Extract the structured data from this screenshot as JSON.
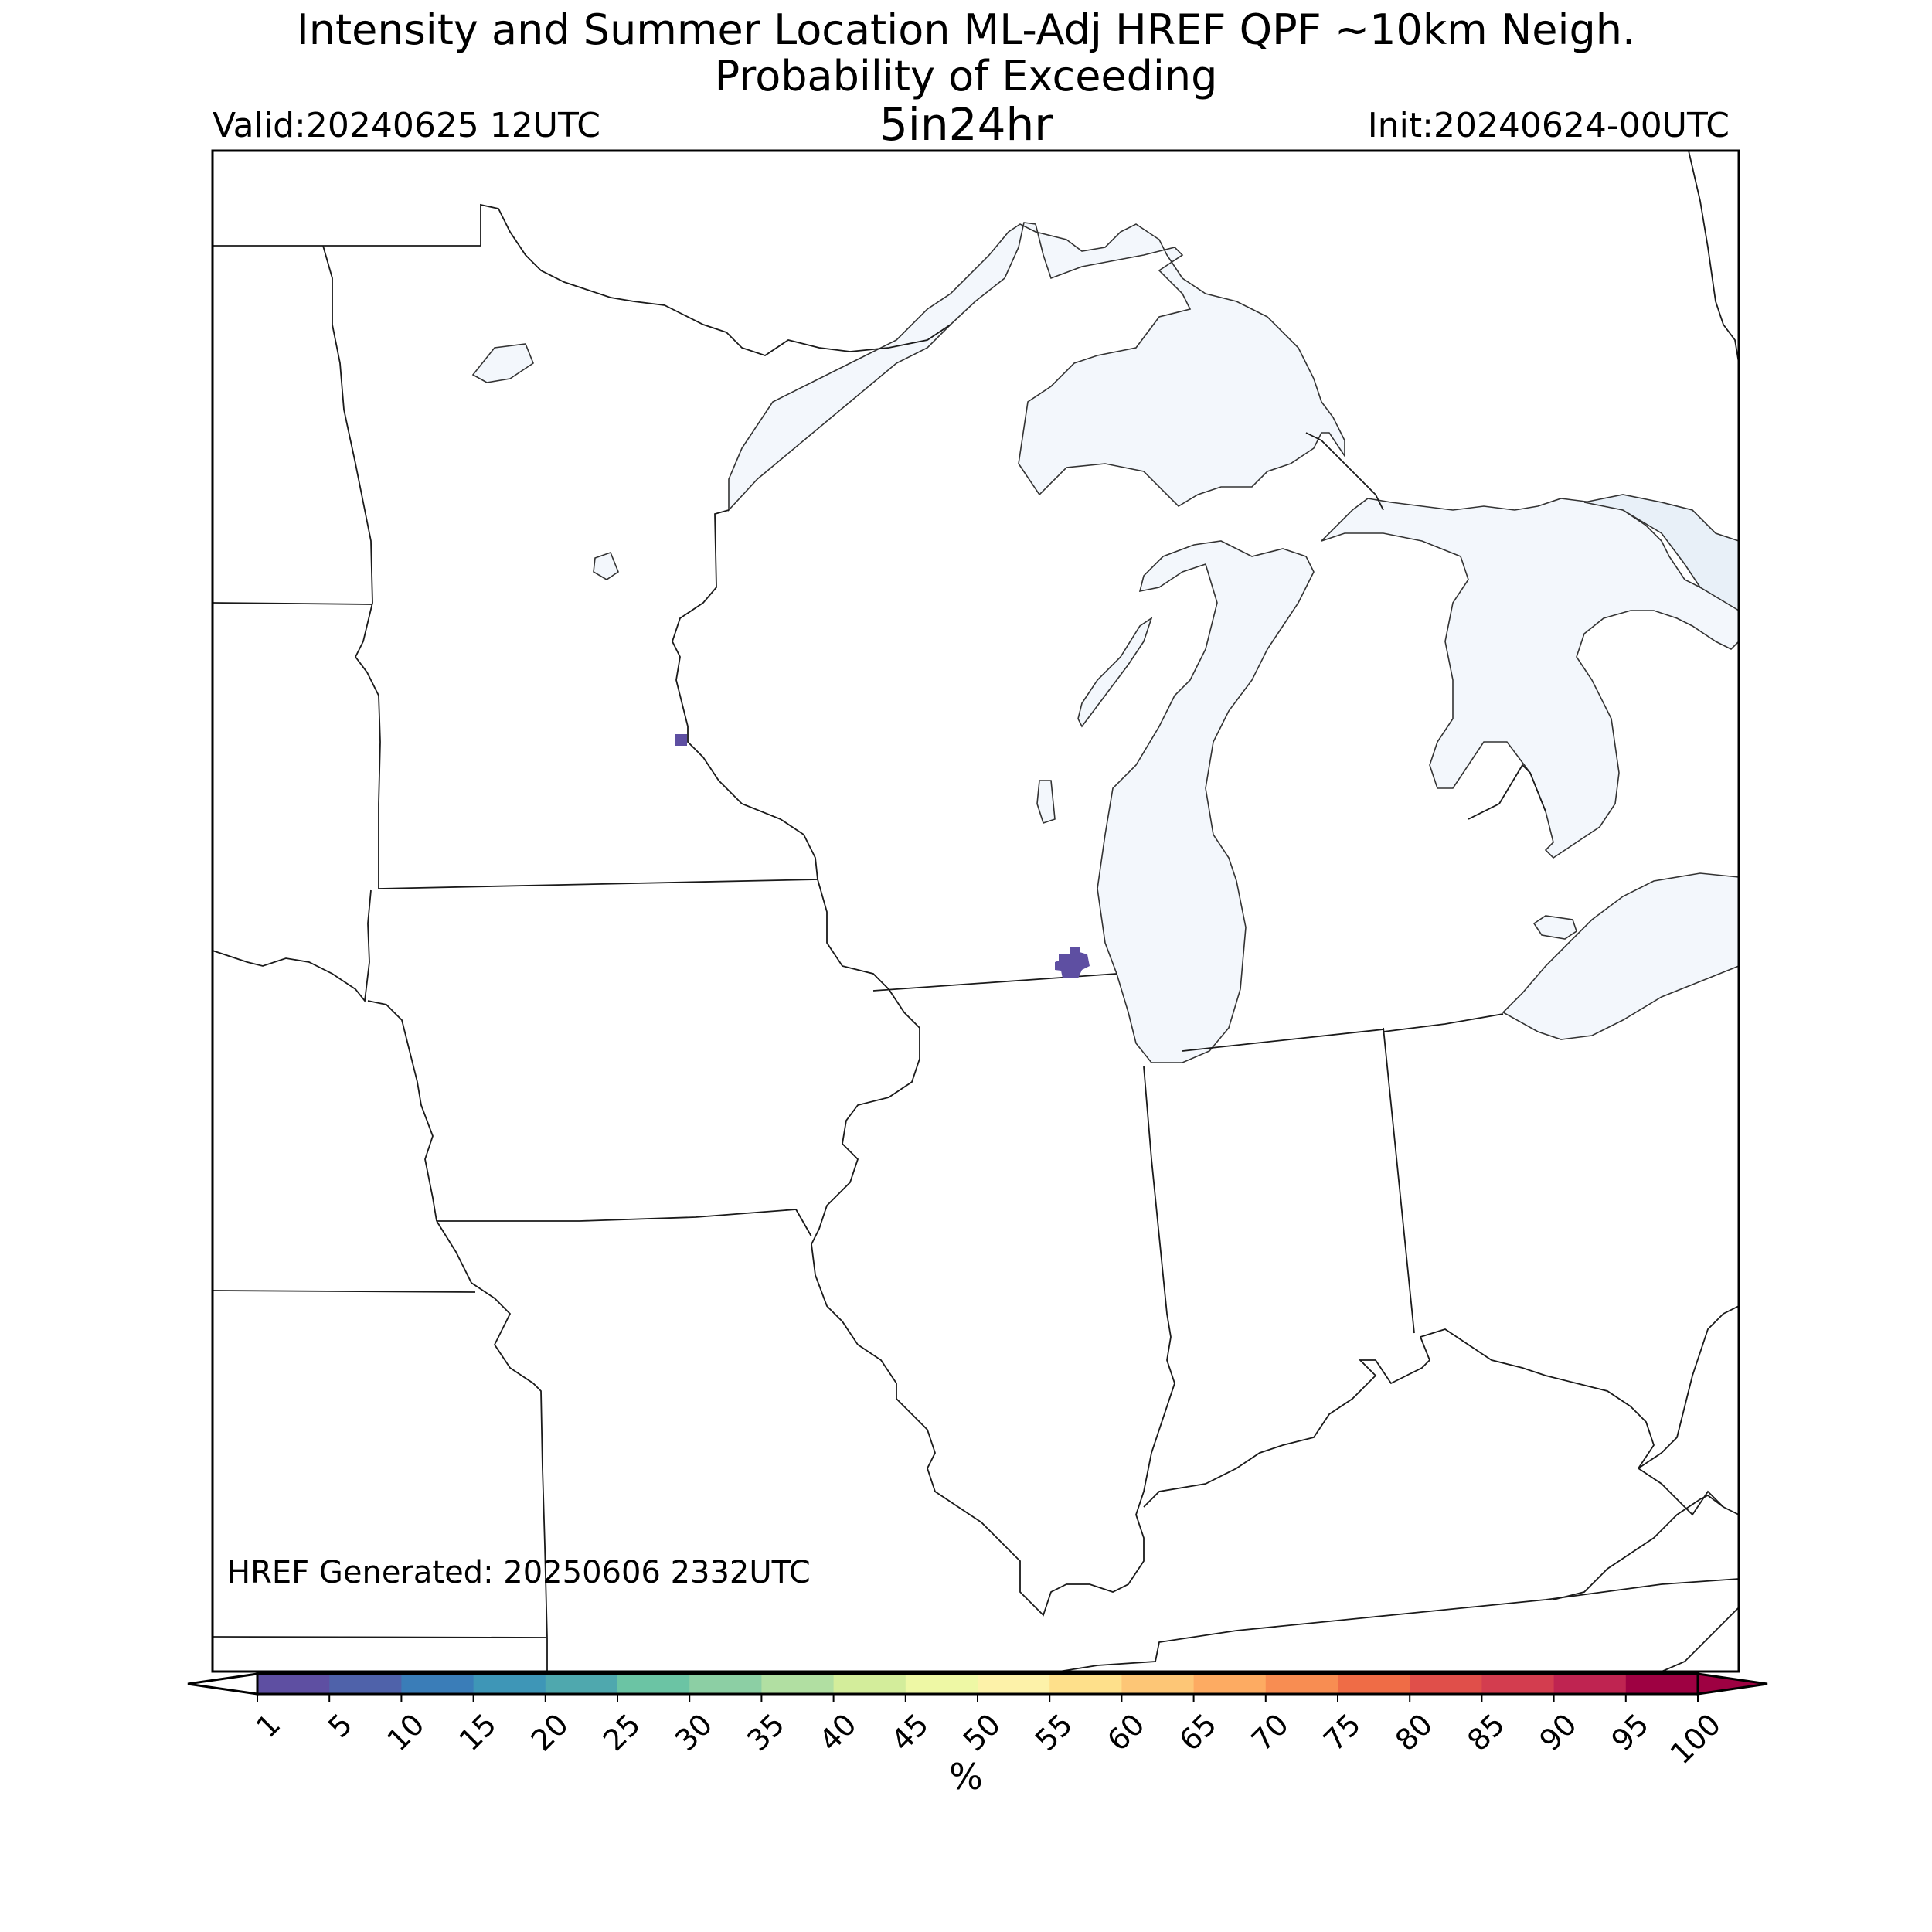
{
  "title": {
    "line1": "Intensity and Summer Location ML-Adj HREF QPF ~10km Neigh.",
    "line2": "Probability of Exceeding",
    "line3": "5in24hr"
  },
  "valid_label": "Valid:20240625 12UTC",
  "init_label": "Init:20240624-00UTC",
  "generated_label": "HREF Generated: 20250606 2332UTC",
  "colorbar": {
    "unit": "%",
    "ticks": [
      "1",
      "5",
      "10",
      "15",
      "20",
      "25",
      "30",
      "35",
      "40",
      "45",
      "50",
      "55",
      "60",
      "65",
      "70",
      "75",
      "80",
      "85",
      "90",
      "95",
      "100"
    ],
    "colors": [
      "#5e4fa2",
      "#4f62aa",
      "#3a7db8",
      "#3e96b7",
      "#4fa8ae",
      "#6bc4a4",
      "#8ccfa4",
      "#b1dfa2",
      "#d3ed9b",
      "#eef8a5",
      "#fdf2a9",
      "#fee08b",
      "#fdc676",
      "#fdab62",
      "#f88d52",
      "#ef6c46",
      "#e04f4a",
      "#d33d4f",
      "#bf2451",
      "#9e0142"
    ],
    "under_color": "#ffffff",
    "over_color": "#9e0142"
  },
  "colors": {
    "water": "#f3f7fc",
    "water_dark": "#e8f0f8",
    "probability": "#5e4fa2",
    "border": "#1a1a1a"
  }
}
